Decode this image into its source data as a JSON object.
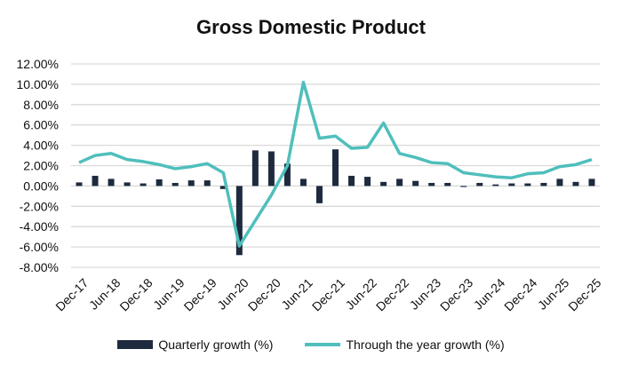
{
  "chart_data": {
    "type": "bar+line",
    "title": "Gross Domestic Product",
    "categories": [
      "Dec-17",
      "Mar-18",
      "Jun-18",
      "Sep-18",
      "Dec-18",
      "Mar-19",
      "Jun-19",
      "Sep-19",
      "Dec-19",
      "Mar-20",
      "Jun-20",
      "Sep-20",
      "Dec-20",
      "Mar-21",
      "Jun-21",
      "Sep-21",
      "Dec-21",
      "Mar-22",
      "Jun-22",
      "Sep-22",
      "Dec-22",
      "Mar-23",
      "Jun-23",
      "Sep-23",
      "Dec-23",
      "Mar-24",
      "Jun-24",
      "Sep-24",
      "Dec-24",
      "Mar-25",
      "Jun-25",
      "Sep-25",
      "Dec-25"
    ],
    "tick_labels": [
      "Dec-17",
      "Jun-18",
      "Dec-18",
      "Jun-19",
      "Dec-19",
      "Jun-20",
      "Dec-20",
      "Jun-21",
      "Dec-21",
      "Jun-22",
      "Dec-22",
      "Jun-23",
      "Dec-23",
      "Jun-24",
      "Dec-24",
      "Jun-25",
      "Dec-25"
    ],
    "series": [
      {
        "name": "Quarterly growth (%)",
        "type": "bar",
        "color": "#1e2a3e",
        "values": [
          0.35,
          1.0,
          0.7,
          0.35,
          0.25,
          0.65,
          0.3,
          0.55,
          0.55,
          -0.3,
          -6.8,
          3.5,
          3.4,
          2.2,
          0.7,
          -1.7,
          3.6,
          1.0,
          0.9,
          0.4,
          0.7,
          0.5,
          0.3,
          0.3,
          -0.1,
          0.3,
          0.15,
          0.25,
          0.25,
          0.3,
          0.7,
          0.4,
          0.7
        ]
      },
      {
        "name": "Through the year growth (%)",
        "type": "line",
        "color": "#4fbfbc",
        "values": [
          2.3,
          3.0,
          3.2,
          2.6,
          2.4,
          2.1,
          1.7,
          1.9,
          2.2,
          1.3,
          -5.9,
          -3.4,
          -0.9,
          2.0,
          10.2,
          4.7,
          4.9,
          3.7,
          3.8,
          6.2,
          3.2,
          2.8,
          2.3,
          2.2,
          1.3,
          1.1,
          0.9,
          0.8,
          1.2,
          1.3,
          1.9,
          2.1,
          2.6
        ]
      }
    ],
    "yticks": [
      "12.00%",
      "10.00%",
      "8.00%",
      "6.00%",
      "4.00%",
      "2.00%",
      "0.00%",
      "-2.00%",
      "-4.00%",
      "-6.00%",
      "-8.00%"
    ],
    "ylim": [
      -8,
      12
    ],
    "grid": true,
    "legend": "bottom"
  }
}
